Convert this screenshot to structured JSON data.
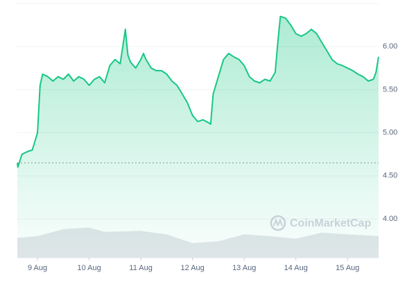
{
  "chart_data": {
    "type": "line",
    "xlim": [
      8.61,
      15.6
    ],
    "xticks": [
      {
        "value": 9,
        "label": "9 Aug"
      },
      {
        "value": 10,
        "label": "10 Aug"
      },
      {
        "value": 11,
        "label": "11 Aug"
      },
      {
        "value": 12,
        "label": "12 Aug"
      },
      {
        "value": 13,
        "label": "13 Aug"
      },
      {
        "value": 14,
        "label": "14 Aug"
      },
      {
        "value": 15,
        "label": "15 Aug"
      }
    ],
    "ylim": [
      3.55,
      6.5
    ],
    "yticks": [
      {
        "value": 4,
        "label": "4.00"
      },
      {
        "value": 4.5,
        "label": "4.50"
      },
      {
        "value": 5,
        "label": "5.00"
      },
      {
        "value": 5.5,
        "label": "5.50"
      },
      {
        "value": 6,
        "label": "6.00"
      }
    ],
    "grid": true,
    "baseline": 4.65,
    "watermark": "CoinMarketCap",
    "series": [
      {
        "color": "#16c784",
        "area": true,
        "x": [
          8.61,
          8.62,
          8.7,
          8.8,
          8.9,
          9.0,
          9.05,
          9.1,
          9.2,
          9.3,
          9.4,
          9.5,
          9.6,
          9.7,
          9.8,
          9.9,
          10.0,
          10.1,
          10.2,
          10.3,
          10.4,
          10.5,
          10.6,
          10.65,
          10.7,
          10.75,
          10.8,
          10.9,
          11.0,
          11.05,
          11.1,
          11.2,
          11.3,
          11.4,
          11.5,
          11.6,
          11.7,
          11.8,
          11.9,
          12.0,
          12.1,
          12.2,
          12.3,
          12.35,
          12.4,
          12.5,
          12.6,
          12.7,
          12.8,
          12.9,
          13.0,
          13.1,
          13.2,
          13.3,
          13.4,
          13.5,
          13.6,
          13.65,
          13.7,
          13.8,
          13.9,
          14.0,
          14.1,
          14.2,
          14.3,
          14.4,
          14.5,
          14.6,
          14.7,
          14.8,
          14.9,
          15.0,
          15.1,
          15.2,
          15.3,
          15.4,
          15.5,
          15.55,
          15.6
        ],
        "values": [
          4.65,
          4.6,
          4.75,
          4.78,
          4.8,
          5.0,
          5.55,
          5.68,
          5.65,
          5.6,
          5.65,
          5.62,
          5.68,
          5.6,
          5.65,
          5.62,
          5.55,
          5.62,
          5.65,
          5.58,
          5.78,
          5.85,
          5.8,
          6.0,
          6.2,
          5.9,
          5.82,
          5.75,
          5.85,
          5.92,
          5.85,
          5.75,
          5.72,
          5.72,
          5.68,
          5.6,
          5.55,
          5.45,
          5.35,
          5.2,
          5.13,
          5.15,
          5.12,
          5.1,
          5.45,
          5.65,
          5.85,
          5.92,
          5.88,
          5.85,
          5.78,
          5.65,
          5.6,
          5.58,
          5.62,
          5.6,
          5.7,
          6.05,
          6.35,
          6.33,
          6.25,
          6.15,
          6.12,
          6.15,
          6.2,
          6.15,
          6.05,
          5.95,
          5.85,
          5.8,
          5.78,
          5.75,
          5.72,
          5.68,
          5.65,
          5.6,
          5.62,
          5.7,
          5.88
        ]
      },
      {
        "color": "#e3e6ea",
        "area": true,
        "x": [
          8.61,
          9.0,
          9.5,
          10.0,
          10.3,
          11.0,
          11.5,
          12.0,
          12.5,
          13.0,
          13.5,
          14.0,
          14.5,
          15.0,
          15.6
        ],
        "values": [
          3.78,
          3.8,
          3.88,
          3.9,
          3.85,
          3.86,
          3.82,
          3.72,
          3.74,
          3.82,
          3.8,
          3.77,
          3.84,
          3.82,
          3.8
        ]
      }
    ]
  }
}
